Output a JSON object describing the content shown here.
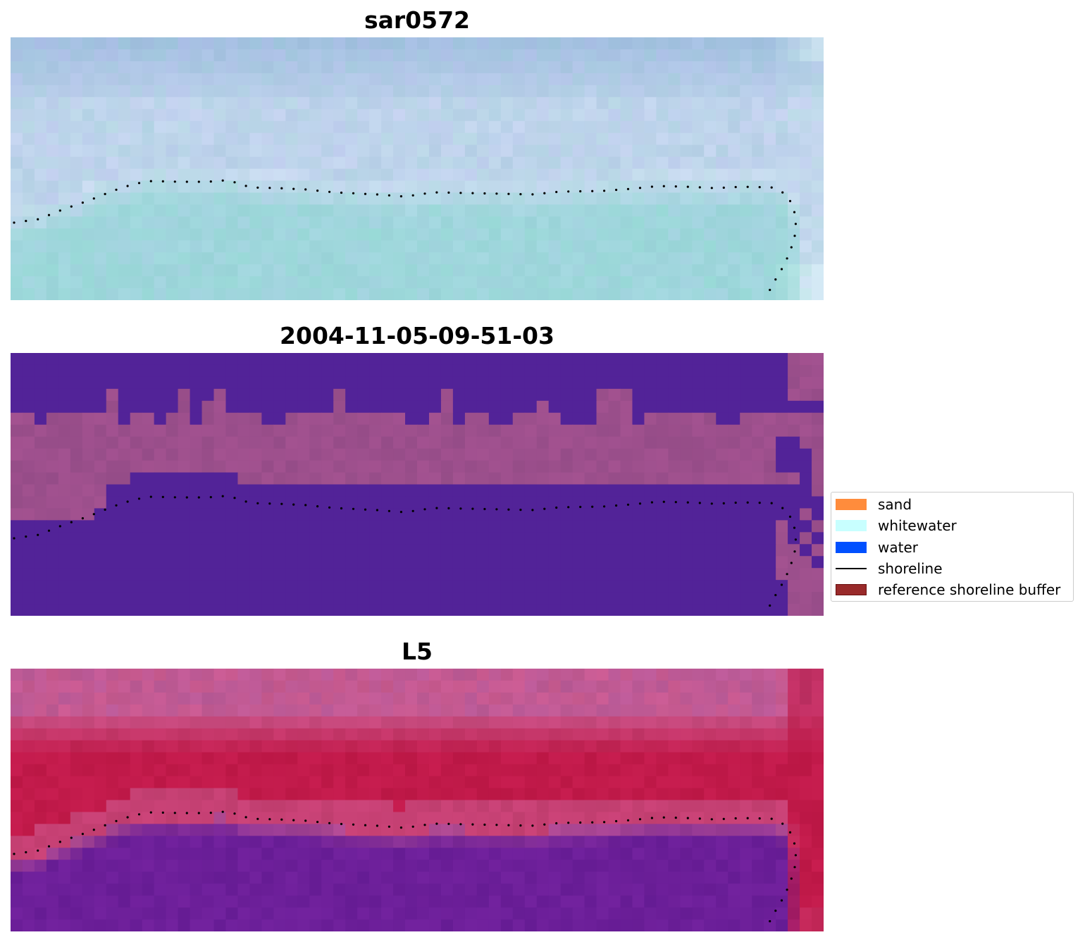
{
  "panels": [
    {
      "title": "sar0572"
    },
    {
      "title": "2004-11-05-09-51-03"
    },
    {
      "title": "L5"
    }
  ],
  "legend": {
    "items": [
      {
        "label": "sand",
        "color": "#ff8c3c",
        "kind": "patch"
      },
      {
        "label": "whitewater",
        "color": "#c8ffff",
        "kind": "patch"
      },
      {
        "label": "water",
        "color": "#0050ff",
        "kind": "patch"
      },
      {
        "label": "shoreline",
        "color": "#000000",
        "kind": "line"
      },
      {
        "label": "reference shoreline buffer",
        "color": "#992a2a",
        "kind": "patch-outlined"
      }
    ]
  },
  "colors": {
    "sar_sky": "#a2bfe0",
    "sar_mid": "#c8dbef",
    "sar_water": "#9fd6dc",
    "class_water": "#522398",
    "class_sand": "#9c4f8c",
    "l5_top": "#c95a8f",
    "l5_red": "#c11a4a",
    "l5_water": "#6c1f99",
    "shoreline": "#000000"
  }
}
